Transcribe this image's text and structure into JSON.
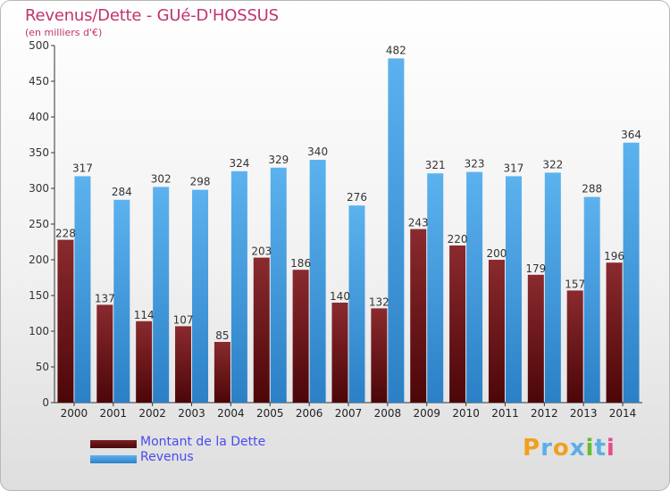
{
  "title": "Revenus/Dette - GUé-D'HOSSUS",
  "subtitle": "(en milliers d'€)",
  "logo": {
    "text": "Proxiti",
    "letters": [
      "P",
      "r",
      "o",
      "x",
      "i",
      "t",
      "i"
    ]
  },
  "colors": {
    "debt": "#7a1e22",
    "revenue": "#4ea4e2",
    "title": "#c0346e",
    "legend_text": "#4a4af0"
  },
  "legend": [
    {
      "label": "Montant de la Dette",
      "color": "#7a1e22"
    },
    {
      "label": "Revenus",
      "color": "#4ea4e2"
    }
  ],
  "chart_data": {
    "type": "bar",
    "title": "Revenus/Dette - GUé-D'HOSSUS",
    "subtitle": "(en milliers d'€)",
    "xlabel": "",
    "ylabel": "",
    "ylim": [
      0,
      500
    ],
    "yticks": [
      0,
      50,
      100,
      150,
      200,
      250,
      300,
      350,
      400,
      450,
      500
    ],
    "grid": false,
    "legend_position": "bottom-left",
    "categories": [
      "2000",
      "2001",
      "2002",
      "2003",
      "2004",
      "2005",
      "2006",
      "2007",
      "2008",
      "2009",
      "2010",
      "2011",
      "2012",
      "2013",
      "2014"
    ],
    "series": [
      {
        "name": "Montant de la Dette",
        "values": [
          228,
          137,
          114,
          107,
          85,
          203,
          186,
          140,
          132,
          243,
          220,
          200,
          179,
          157,
          196
        ]
      },
      {
        "name": "Revenus",
        "values": [
          317,
          284,
          302,
          298,
          324,
          329,
          340,
          276,
          482,
          321,
          323,
          317,
          322,
          288,
          364
        ]
      }
    ]
  }
}
